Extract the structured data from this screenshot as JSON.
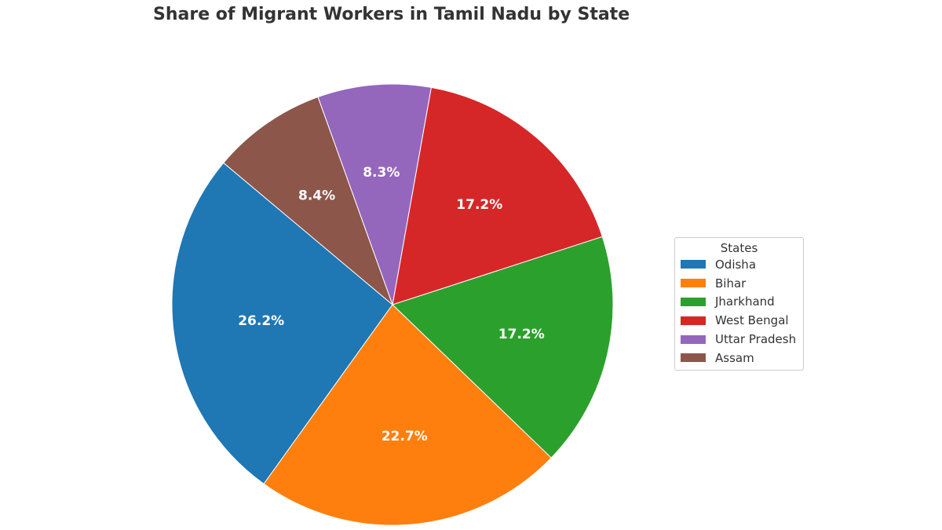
{
  "chart_data": {
    "type": "pie",
    "title": "Share of Migrant Workers in Tamil Nadu by State",
    "legend_title": "States",
    "legend_placement": "right",
    "categories": [
      "Odisha",
      "Bihar",
      "Jharkhand",
      "West Bengal",
      "Uttar Pradesh",
      "Assam"
    ],
    "values": [
      26.2,
      22.7,
      17.2,
      17.2,
      8.3,
      8.4
    ],
    "labels": [
      "26.2%",
      "22.7%",
      "17.2%",
      "17.2%",
      "8.3%",
      "8.4%"
    ],
    "colors": [
      "#1f77b4",
      "#ff7f0e",
      "#2ca02c",
      "#d62728",
      "#9467bd",
      "#8c564b"
    ],
    "start_angle_deg": 140,
    "direction": "counterclockwise"
  }
}
